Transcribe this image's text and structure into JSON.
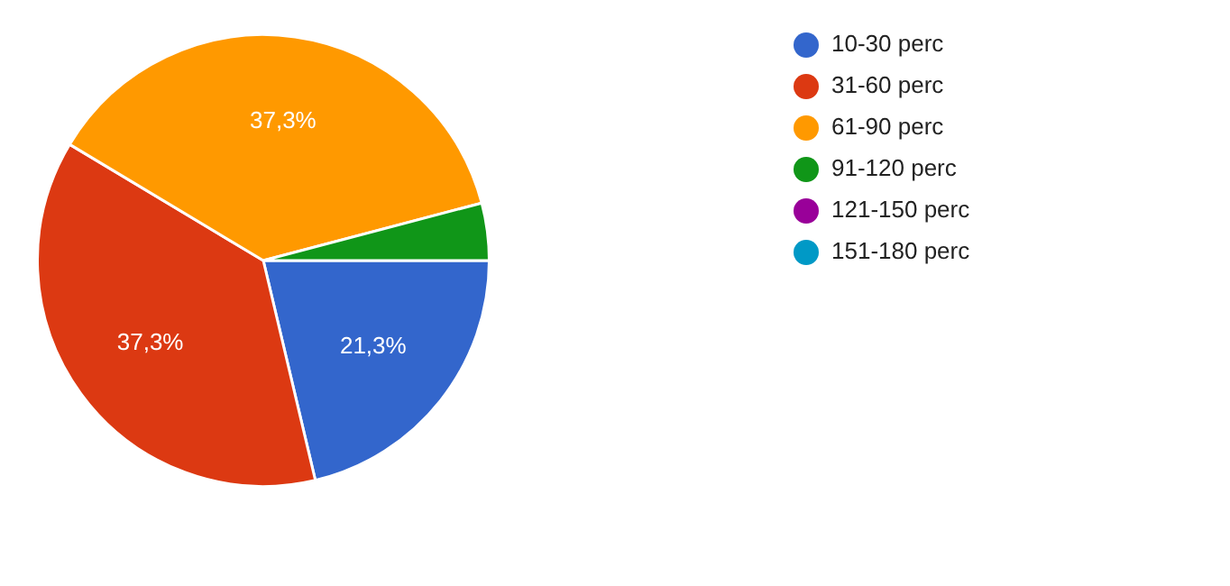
{
  "chart_data": {
    "type": "pie",
    "categories": [
      "10-30 perc",
      "31-60 perc",
      "61-90 perc",
      "91-120 perc",
      "121-150 perc",
      "151-180 perc"
    ],
    "values": [
      21.3,
      37.3,
      37.3,
      4.1,
      0,
      0
    ],
    "colors": [
      "#3366cc",
      "#dc3912",
      "#ff9900",
      "#109618",
      "#990099",
      "#0099c6"
    ],
    "value_labels": [
      "21,3%",
      "37,3%",
      "37,3%",
      null,
      null,
      null
    ],
    "legend": "top right"
  }
}
